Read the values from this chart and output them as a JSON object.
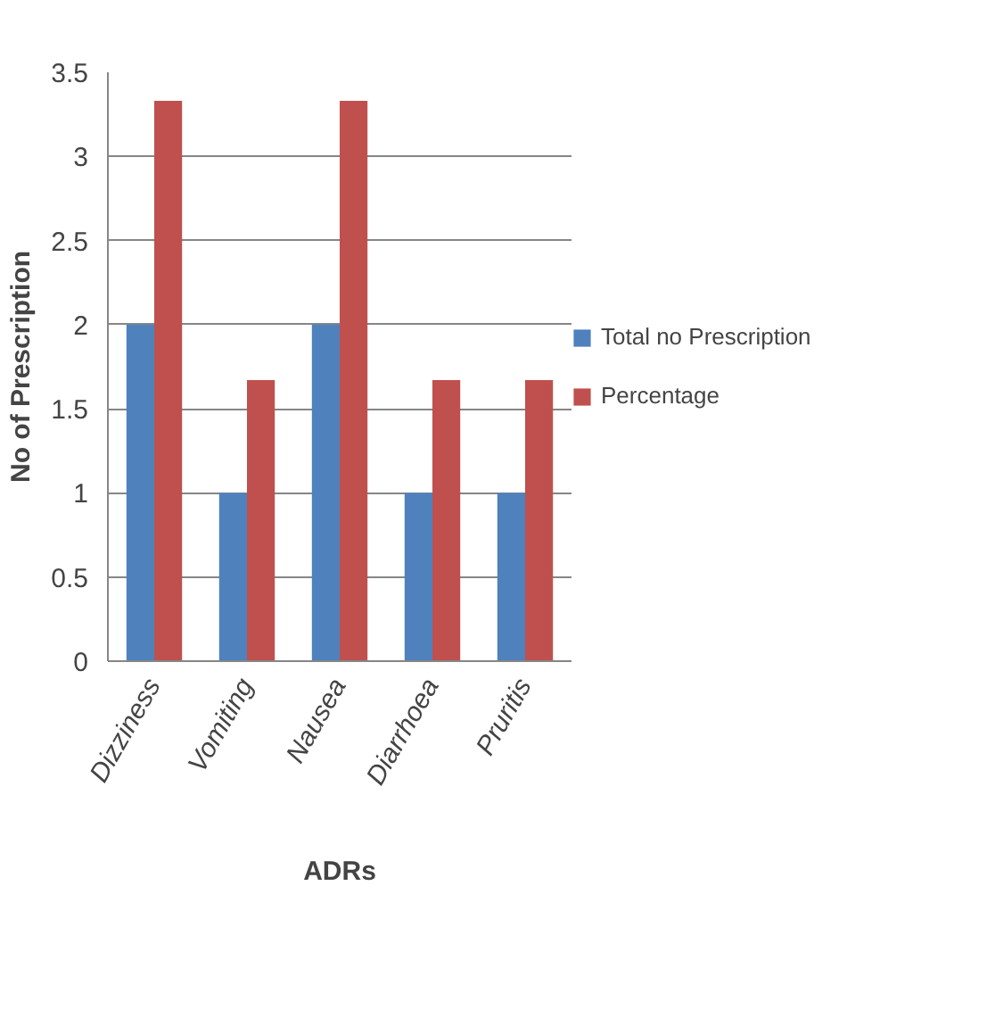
{
  "chart_data": {
    "type": "bar",
    "xlabel": "ADRs",
    "ylabel": "No of Prescription",
    "categories": [
      "Dizziness",
      "Vomiting",
      "Nausea",
      "Diarrhoea",
      "Pruritis"
    ],
    "series": [
      {
        "name": "Total no Prescription",
        "color": "#4f81bd",
        "values": [
          2,
          1,
          2,
          1,
          1
        ]
      },
      {
        "name": "Percentage",
        "color": "#c0504d",
        "values": [
          3.33,
          1.67,
          3.33,
          1.67,
          1.67
        ]
      }
    ],
    "ylim": [
      0,
      3.5
    ],
    "yticks": [
      0,
      0.5,
      1,
      1.5,
      2,
      2.5,
      3,
      3.5
    ],
    "grid": "y",
    "legend": "right"
  }
}
